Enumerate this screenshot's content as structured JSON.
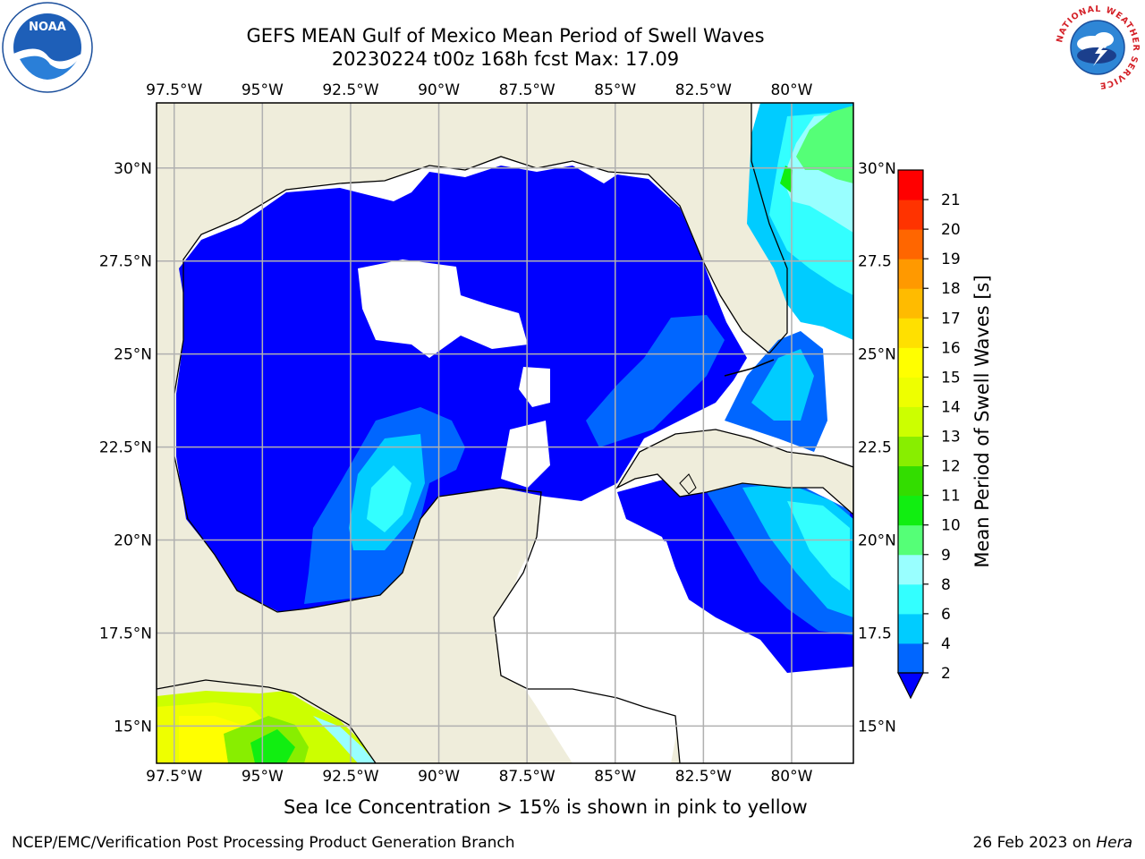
{
  "title_line1": "GEFS MEAN Gulf of Mexico Mean Period of Swell Waves",
  "title_line2": "20230224 t00z 168h fcst   Max: 17.09",
  "map": {
    "lon_ticks": [
      {
        "value": -97.5,
        "label": "97.5°W"
      },
      {
        "value": -95,
        "label": "95°W"
      },
      {
        "value": -92.5,
        "label": "92.5°W"
      },
      {
        "value": -90,
        "label": "90°W"
      },
      {
        "value": -87.5,
        "label": "87.5°W"
      },
      {
        "value": -85,
        "label": "85°W"
      },
      {
        "value": -82.5,
        "label": "82.5°W"
      },
      {
        "value": -80,
        "label": "80°W"
      }
    ],
    "lat_ticks_left": [
      {
        "value": 30,
        "label": "30°N"
      },
      {
        "value": 27.5,
        "label": "27.5°N"
      },
      {
        "value": 25,
        "label": "25°N"
      },
      {
        "value": 22.5,
        "label": "22.5°N"
      },
      {
        "value": 20,
        "label": "20°N"
      },
      {
        "value": 17.5,
        "label": "17.5°N"
      },
      {
        "value": 15,
        "label": "15°N"
      }
    ],
    "lat_ticks_right": [
      {
        "value": 30,
        "label": "30°N"
      },
      {
        "value": 27.5,
        "label": "27.5"
      },
      {
        "value": 25,
        "label": "25°N"
      },
      {
        "value": 22.5,
        "label": "22.5"
      },
      {
        "value": 20,
        "label": "20°N"
      },
      {
        "value": 17.5,
        "label": "17.5"
      },
      {
        "value": 15,
        "label": "15°N"
      }
    ],
    "lon_range": [
      -98,
      -78.25
    ],
    "lat_range": [
      14,
      31.75
    ],
    "colors": {
      "land": "#efeddb",
      "no_data": "#ffffff",
      "gridline": "#b0b0b0"
    }
  },
  "colorbar": {
    "label": "Mean Period of Swell Waves [s]",
    "levels": [
      2,
      4,
      6,
      8,
      9,
      10,
      11,
      12,
      13,
      14,
      15,
      16,
      17,
      18,
      19,
      20,
      21
    ],
    "tick_labels": [
      "2",
      "4",
      "6",
      "8",
      "9",
      "10",
      "11",
      "12",
      "13",
      "14",
      "15",
      "16",
      "17",
      "18",
      "19",
      "20",
      "21"
    ],
    "colors": [
      "#0066ff",
      "#00ccff",
      "#33ffff",
      "#99ffff",
      "#55ff77",
      "#11ee11",
      "#33dd00",
      "#88ee00",
      "#ccff00",
      "#eeff00",
      "#ffff00",
      "#ffe000",
      "#ffbb00",
      "#ff9900",
      "#ff6600",
      "#ff3300",
      "#ff0000"
    ],
    "under_color": "#0000ff"
  },
  "note": "Sea Ice Concentration > 15% is shown in pink to yellow",
  "footer_left": "NCEP/EMC/Verification Post Processing Product Generation Branch",
  "footer_date": "26 Feb 2023 on ",
  "footer_host": "Hera",
  "logos": {
    "left": "NOAA",
    "right": "NATIONAL WEATHER SERVICE"
  }
}
